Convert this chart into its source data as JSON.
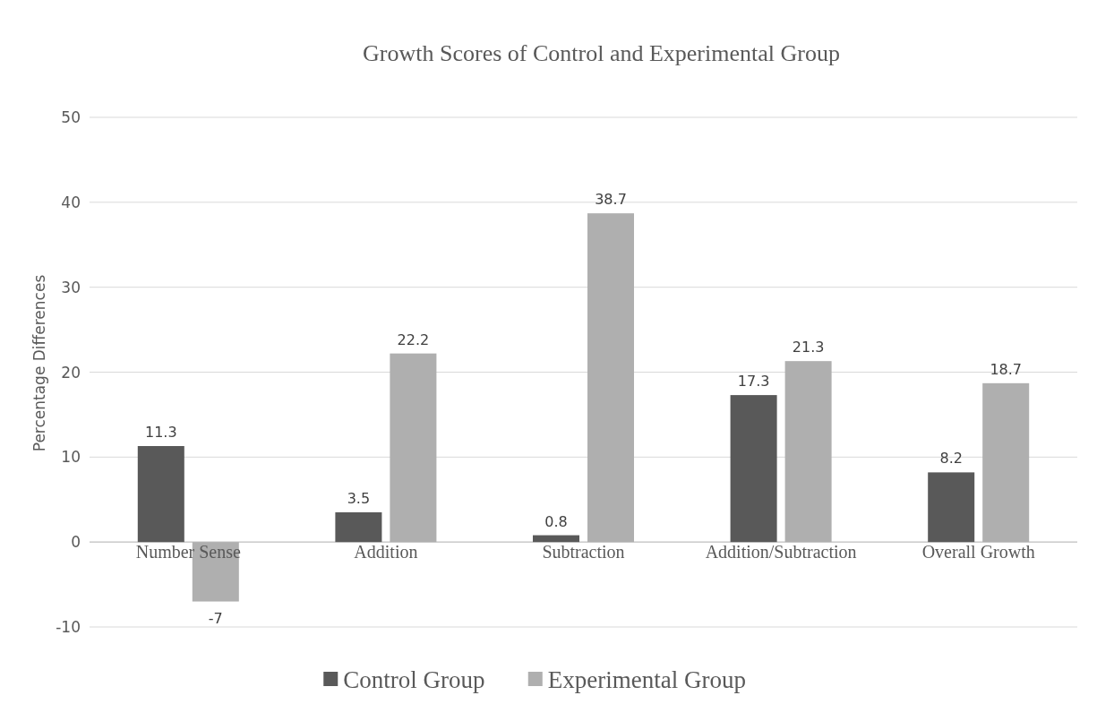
{
  "chart_data": {
    "type": "bar",
    "title": "Growth Scores of Control and Experimental Group",
    "ylabel": "Percentage Differences",
    "categories": [
      "Number Sense",
      "Addition",
      "Subtraction",
      "Addition/Subtraction",
      "Overall Growth"
    ],
    "series": [
      {
        "name": "Control Group",
        "color": "#595959",
        "values": [
          11.3,
          3.5,
          0.8,
          17.3,
          8.2
        ]
      },
      {
        "name": "Experimental Group",
        "color": "#afafaf",
        "values": [
          -7,
          22.2,
          38.7,
          21.3,
          18.7
        ]
      }
    ],
    "ylim": [
      -10,
      50
    ],
    "yticks": [
      -10,
      0,
      10,
      20,
      30,
      40,
      50
    ],
    "grid": "y",
    "legend": "bottom",
    "data_labels": true
  }
}
